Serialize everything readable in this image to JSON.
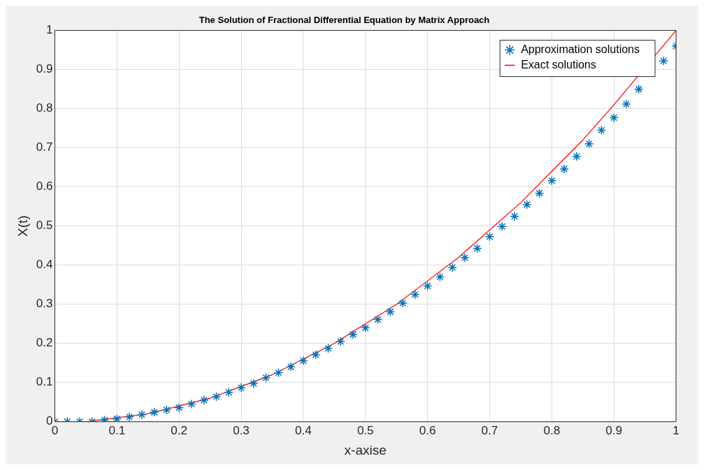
{
  "chart_data": {
    "type": "scatter",
    "title": "The Solution of Fractional Differential Equation by Matrix Approach",
    "xlabel": "x-axise",
    "ylabel": "X(t)",
    "xlim": [
      0,
      1
    ],
    "xticks": [
      0,
      0.1,
      0.2,
      0.3,
      0.4,
      0.5,
      0.6,
      0.7,
      0.8,
      0.9,
      1
    ],
    "ylim": [
      0,
      1
    ],
    "yticks": [
      0,
      0.1,
      0.2,
      0.3,
      0.4,
      0.5,
      0.6,
      0.7,
      0.8,
      0.9,
      1
    ],
    "grid": true,
    "legend": "top right",
    "series": [
      {
        "name": "Approximation solutions",
        "marker": "cross",
        "color": "#0072bd",
        "x": [
          0,
          0.02,
          0.04,
          0.06,
          0.08,
          0.1,
          0.12,
          0.14,
          0.16,
          0.18,
          0.2,
          0.22,
          0.24,
          0.26,
          0.28,
          0.3,
          0.32,
          0.34,
          0.36,
          0.38,
          0.4,
          0.42,
          0.44,
          0.46,
          0.48,
          0.5,
          0.52,
          0.54,
          0.56,
          0.58,
          0.6,
          0.62,
          0.64,
          0.66,
          0.68,
          0.7,
          0.72,
          0.74,
          0.76,
          0.78,
          0.8,
          0.82,
          0.84,
          0.86,
          0.88,
          0.9,
          0.92,
          0.94,
          0.96,
          0.98,
          1
        ],
        "values": [
          0,
          0,
          0,
          0,
          0.004,
          0.007,
          0.012,
          0.018,
          0.024,
          0.03,
          0.036,
          0.045,
          0.055,
          0.064,
          0.075,
          0.087,
          0.098,
          0.112,
          0.125,
          0.14,
          0.156,
          0.171,
          0.187,
          0.205,
          0.223,
          0.24,
          0.261,
          0.281,
          0.303,
          0.325,
          0.347,
          0.37,
          0.394,
          0.419,
          0.443,
          0.473,
          0.499,
          0.525,
          0.555,
          0.584,
          0.616,
          0.646,
          0.678,
          0.71,
          0.745,
          0.777,
          0.812,
          0.85,
          null,
          0.922,
          0.96
        ]
      },
      {
        "name": "Exact solutions",
        "type": "line",
        "marker": "none",
        "line_style": "solid",
        "color": "#ff0000",
        "x": [
          0.05,
          0.1,
          0.15,
          0.2,
          0.25,
          0.3,
          0.35,
          0.4,
          0.45,
          0.5,
          0.55,
          0.6,
          0.65,
          0.7,
          0.75,
          0.8,
          0.85,
          0.9,
          1
        ],
        "values": [
          0,
          0.01,
          0.02,
          0.04,
          0.06,
          0.09,
          0.12,
          0.16,
          0.2,
          0.25,
          0.3,
          0.36,
          0.42,
          0.49,
          0.56,
          0.64,
          0.72,
          0.81,
          1
        ]
      }
    ]
  }
}
